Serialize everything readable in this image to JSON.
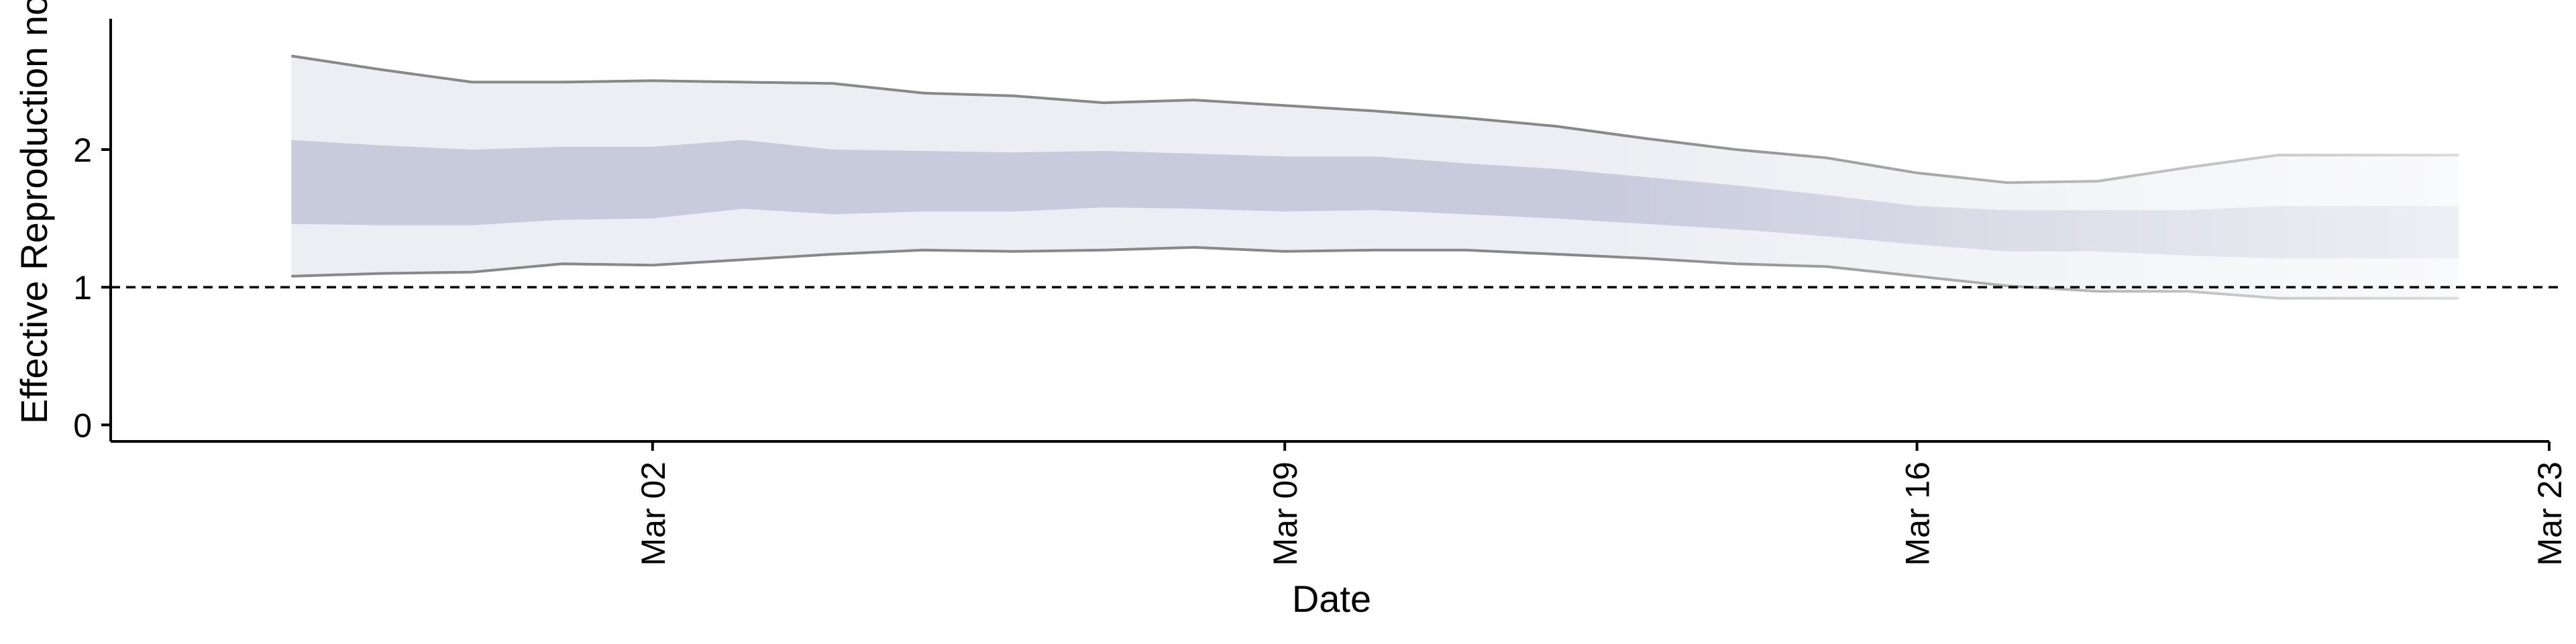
{
  "chart_data": {
    "type": "area",
    "title": "",
    "xlabel": "Date",
    "ylabel": "Effective Reproduction no",
    "x_tick_labels": [
      "Mar 02",
      "Mar 09",
      "Mar 16",
      "Mar 23"
    ],
    "x_tick_values": [
      "2020-03-02",
      "2020-03-09",
      "2020-03-16",
      "2020-03-23"
    ],
    "y_tick_labels": [
      "0",
      "1",
      "2"
    ],
    "y_tick_values": [
      0,
      1,
      2
    ],
    "xlim": [
      "2020-02-25",
      "2020-03-23"
    ],
    "ylim": [
      -0.12,
      2.95
    ],
    "reference_line": {
      "y": 1,
      "style": "dashed"
    },
    "grid": false,
    "legend": "none",
    "x": [
      "2020-02-27",
      "2020-02-28",
      "2020-02-29",
      "2020-03-01",
      "2020-03-02",
      "2020-03-03",
      "2020-03-04",
      "2020-03-05",
      "2020-03-06",
      "2020-03-07",
      "2020-03-08",
      "2020-03-09",
      "2020-03-10",
      "2020-03-11",
      "2020-03-12",
      "2020-03-13",
      "2020-03-14",
      "2020-03-15",
      "2020-03-16",
      "2020-03-17",
      "2020-03-18",
      "2020-03-19",
      "2020-03-20",
      "2020-03-21",
      "2020-03-22"
    ],
    "series": [
      {
        "values_upper90": [
          2.68,
          2.58,
          2.49,
          2.49,
          2.5,
          2.49,
          2.48,
          2.41,
          2.39,
          2.34,
          2.36,
          2.32,
          2.28,
          2.23,
          2.17,
          2.08,
          2.0,
          1.94,
          1.83,
          1.76,
          1.77,
          1.87,
          1.96,
          1.96,
          1.96
        ],
        "values_upper50": [
          2.07,
          2.03,
          2.0,
          2.02,
          2.02,
          2.07,
          2.0,
          1.99,
          1.98,
          1.99,
          1.97,
          1.95,
          1.95,
          1.9,
          1.86,
          1.8,
          1.74,
          1.67,
          1.59,
          1.56,
          1.56,
          1.56,
          1.59,
          1.59,
          1.59
        ],
        "values_lower50": [
          1.46,
          1.45,
          1.45,
          1.49,
          1.5,
          1.57,
          1.53,
          1.55,
          1.55,
          1.58,
          1.57,
          1.55,
          1.56,
          1.53,
          1.5,
          1.46,
          1.42,
          1.37,
          1.31,
          1.26,
          1.26,
          1.23,
          1.21,
          1.21,
          1.21
        ],
        "values_lower90": [
          1.08,
          1.1,
          1.11,
          1.17,
          1.16,
          1.2,
          1.24,
          1.27,
          1.26,
          1.27,
          1.29,
          1.26,
          1.27,
          1.27,
          1.24,
          1.21,
          1.17,
          1.15,
          1.08,
          1.01,
          0.97,
          0.97,
          0.92,
          0.92,
          0.92
        ]
      }
    ]
  },
  "colors": {
    "outer_band": "#eceef3",
    "inner_band": "#c8cbdc",
    "bound_line": "#888888",
    "axis": "#000000",
    "reference_line": "#000000"
  }
}
